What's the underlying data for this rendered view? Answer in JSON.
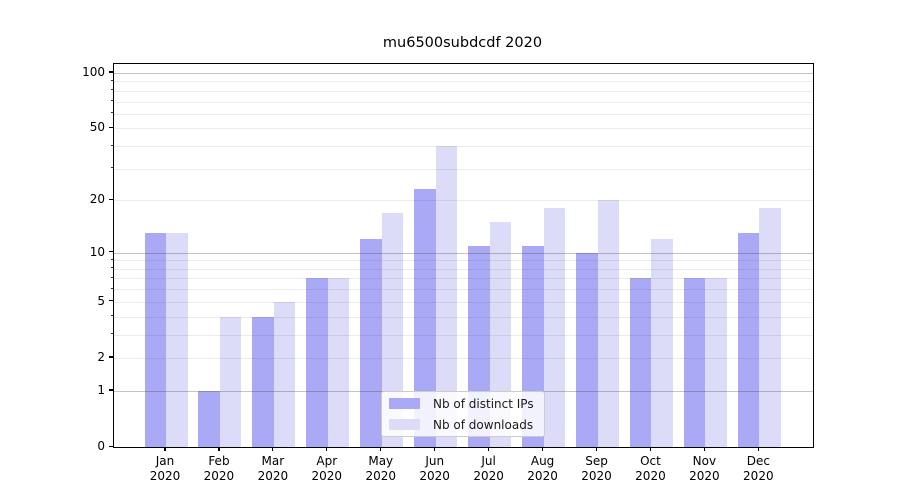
{
  "title": "mu6500subdcdf 2020",
  "legend": {
    "items": [
      {
        "label": "Nb of distinct IPs",
        "color": "#a9a9f5"
      },
      {
        "label": "Nb of downloads",
        "color": "#dcdcf9"
      }
    ]
  },
  "chart_data": {
    "type": "bar",
    "title": "mu6500subdcdf 2020",
    "categories": [
      "Jan",
      "Feb",
      "Mar",
      "Apr",
      "May",
      "Jun",
      "Jul",
      "Aug",
      "Sep",
      "Oct",
      "Nov",
      "Dec"
    ],
    "category_year": "2020",
    "series": [
      {
        "name": "Nb of distinct IPs",
        "key": "distinct-ips",
        "color": "#a9a9f5",
        "values": [
          13,
          1,
          4,
          7,
          12,
          23,
          11,
          11,
          10,
          7,
          7,
          13
        ]
      },
      {
        "name": "Nb of downloads",
        "key": "downloads",
        "color": "#dcdcf9",
        "values": [
          13,
          4,
          5,
          7,
          17,
          40,
          15,
          18,
          20,
          12,
          7,
          18
        ]
      }
    ],
    "xlabel": "",
    "ylabel": "",
    "yscale": "log10(value+1)",
    "ylim": [
      0,
      112
    ],
    "yticks": [
      0,
      1,
      2,
      5,
      10,
      20,
      50,
      100
    ],
    "yticklabels": [
      "0",
      "1",
      "2",
      "5",
      "10",
      "20",
      "50",
      "100"
    ],
    "grid": {
      "enabled": true,
      "drawn_above_bars": true,
      "major_values": [
        1,
        10,
        100
      ],
      "minor_values": [
        2,
        3,
        4,
        5,
        6,
        7,
        8,
        9,
        20,
        30,
        40,
        50,
        60,
        70,
        80,
        90
      ]
    },
    "legend_position": "lower center"
  }
}
